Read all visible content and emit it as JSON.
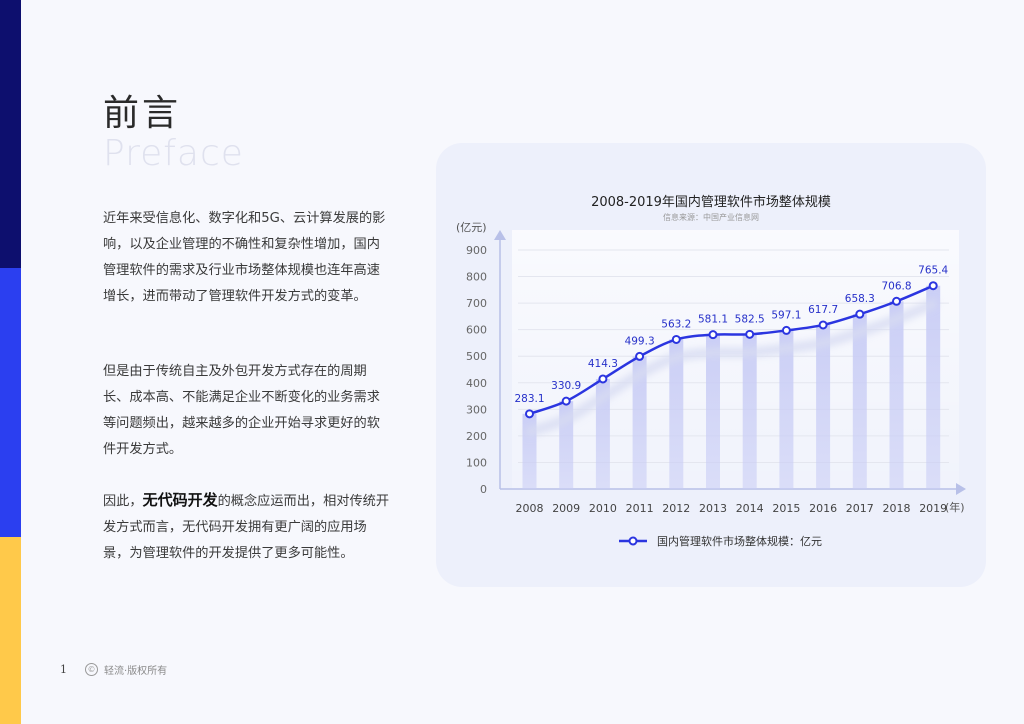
{
  "sidebar": {
    "colors": [
      "#0d0f6e",
      "#2b3ff0",
      "#ffc94a"
    ]
  },
  "heading": {
    "zh": "前言",
    "en": "Preface"
  },
  "paragraphs": {
    "p1": "近年来受信息化、数字化和5G、云计算发展的影响，以及企业管理的不确性和复杂性增加，国内管理软件的需求及行业市场整体规模也连年高速增长，进而带动了管理软件开发方式的变革。",
    "p2": "但是由于传统自主及外包开发方式存在的周期长、成本高、不能满足企业不断变化的业务需求等问题频出，越来越多的企业开始寻求更好的软件开发方式。",
    "p3_before": "因此，",
    "p3_emphasis": "无代码开发",
    "p3_after": "的概念应运而出，相对传统开发方式而言，无代码开发拥有更广阔的应用场景，为管理软件的开发提供了更多可能性。"
  },
  "footer": {
    "page_number": "1",
    "copyright_icon": "copyright-icon",
    "copyright_glyph": "©",
    "text": "轻流·版权所有"
  },
  "chart_data": {
    "type": "line",
    "title": "2008-2019年国内管理软件市场整体规模",
    "subtitle": "信息来源：中国产业信息网",
    "ylabel": "(亿元)",
    "xlabel": "(年)",
    "categories": [
      "2008",
      "2009",
      "2010",
      "2011",
      "2012",
      "2013",
      "2014",
      "2015",
      "2016",
      "2017",
      "2018",
      "2019"
    ],
    "series": [
      {
        "name": "国内管理软件市场整体规模：亿元",
        "values": [
          283.1,
          330.9,
          414.3,
          499.3,
          563.2,
          581.1,
          582.5,
          597.1,
          617.7,
          658.3,
          706.8,
          765.4
        ]
      }
    ],
    "data_labels": [
      "283.1",
      "330.9",
      "414.3",
      "499.3",
      "563.2",
      "581.1",
      "582.5",
      "597.1",
      "617.7",
      "658.3",
      "706.8",
      "765.4"
    ],
    "yticks": [
      0,
      100,
      200,
      300,
      400,
      500,
      600,
      700,
      800,
      900
    ],
    "ylim": [
      0,
      900
    ],
    "grid": true,
    "legend_position": "bottom",
    "colors": {
      "line": "#2b35e0",
      "bar": "#c8ccf5",
      "shadow": "#d7dbf2",
      "grid": "#e4e6ef"
    }
  }
}
